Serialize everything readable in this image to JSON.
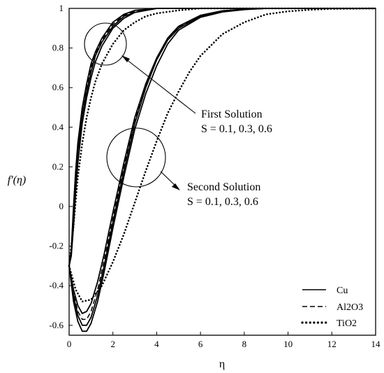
{
  "chart_data": {
    "type": "line",
    "xlabel": "η",
    "ylabel": "f'(η)",
    "xlim": [
      0,
      14
    ],
    "ylim": [
      -0.65,
      1
    ],
    "x_ticks": [
      "0",
      "2",
      "4",
      "6",
      "8",
      "10",
      "12",
      "14"
    ],
    "y_ticks": [
      "-0.6",
      "-0.4",
      "-0.2",
      "0",
      "0.2",
      "0.4",
      "0.6",
      "0.8",
      "1"
    ],
    "grid": false,
    "legend_position": "bottom-right",
    "legend": [
      {
        "label": "Cu",
        "style": "solid"
      },
      {
        "label": "Al2O3",
        "style": "dashed"
      },
      {
        "label": "TiO2",
        "style": "dotted"
      }
    ],
    "annotations": {
      "first_title": "First Solution",
      "first_params": "S = 0.1, 0.3, 0.6",
      "second_title": "Second Solution",
      "second_params": "S = 0.1, 0.3, 0.6"
    },
    "series": [
      {
        "style": "solid",
        "x": [
          0,
          0.1,
          0.2,
          0.3,
          0.4,
          0.6,
          0.8,
          1,
          1.2,
          1.5,
          2,
          2.5,
          3,
          4,
          5,
          14
        ],
        "y": [
          -0.3,
          -0.22,
          0,
          0.18,
          0.32,
          0.5,
          0.62,
          0.72,
          0.78,
          0.85,
          0.93,
          0.97,
          0.99,
          1,
          1,
          1
        ]
      },
      {
        "style": "solid",
        "x": [
          0,
          0.1,
          0.2,
          0.3,
          0.4,
          0.6,
          0.8,
          1,
          1.2,
          1.5,
          2,
          2.5,
          3,
          4,
          5,
          14
        ],
        "y": [
          -0.3,
          -0.24,
          -0.05,
          0.14,
          0.28,
          0.46,
          0.58,
          0.68,
          0.76,
          0.83,
          0.91,
          0.96,
          0.98,
          1,
          1,
          1
        ]
      },
      {
        "style": "solid",
        "x": [
          0,
          0.1,
          0.2,
          0.3,
          0.4,
          0.6,
          0.8,
          1,
          1.2,
          1.5,
          2,
          2.5,
          3,
          4,
          5,
          14
        ],
        "y": [
          -0.3,
          -0.25,
          -0.1,
          0.08,
          0.22,
          0.42,
          0.55,
          0.65,
          0.73,
          0.81,
          0.9,
          0.95,
          0.98,
          1,
          1,
          1
        ]
      },
      {
        "style": "dashed",
        "x": [
          0,
          0.1,
          0.2,
          0.3,
          0.4,
          0.6,
          0.8,
          1,
          1.2,
          1.5,
          2,
          2.5,
          3,
          4,
          5,
          14
        ],
        "y": [
          -0.3,
          -0.23,
          -0.02,
          0.16,
          0.3,
          0.48,
          0.6,
          0.7,
          0.77,
          0.84,
          0.92,
          0.965,
          0.985,
          1,
          1,
          1
        ]
      },
      {
        "style": "dotted",
        "x": [
          0,
          0.2,
          0.4,
          0.6,
          0.8,
          1,
          1.2,
          1.5,
          2,
          2.5,
          3,
          3.5,
          4,
          5,
          6,
          7,
          14
        ],
        "y": [
          -0.3,
          -0.1,
          0.15,
          0.32,
          0.45,
          0.55,
          0.63,
          0.72,
          0.82,
          0.89,
          0.93,
          0.96,
          0.975,
          0.99,
          1,
          1,
          1
        ]
      },
      {
        "style": "solid",
        "x": [
          0,
          0.2,
          0.4,
          0.6,
          0.8,
          1,
          1.3,
          1.6,
          2,
          2.5,
          3,
          3.5,
          4,
          4.5,
          5,
          6,
          7,
          8,
          9,
          14
        ],
        "y": [
          -0.3,
          -0.45,
          -0.55,
          -0.6,
          -0.6,
          -0.56,
          -0.45,
          -0.3,
          -0.08,
          0.18,
          0.42,
          0.6,
          0.74,
          0.84,
          0.9,
          0.96,
          0.985,
          0.995,
          1,
          1
        ]
      },
      {
        "style": "solid",
        "x": [
          0,
          0.2,
          0.4,
          0.6,
          0.8,
          1,
          1.3,
          1.6,
          2,
          2.5,
          3,
          3.5,
          4,
          4.5,
          5,
          6,
          7,
          8,
          9,
          14
        ],
        "y": [
          -0.3,
          -0.42,
          -0.5,
          -0.54,
          -0.53,
          -0.49,
          -0.38,
          -0.24,
          -0.03,
          0.22,
          0.45,
          0.62,
          0.75,
          0.85,
          0.91,
          0.965,
          0.988,
          0.996,
          1,
          1
        ]
      },
      {
        "style": "solid",
        "x": [
          0,
          0.2,
          0.4,
          0.6,
          0.8,
          1,
          1.3,
          1.6,
          2,
          2.5,
          3,
          3.5,
          4,
          4.5,
          5,
          6,
          7,
          8,
          9,
          14
        ],
        "y": [
          -0.3,
          -0.48,
          -0.58,
          -0.63,
          -0.63,
          -0.59,
          -0.48,
          -0.33,
          -0.11,
          0.15,
          0.39,
          0.57,
          0.71,
          0.82,
          0.89,
          0.955,
          0.982,
          0.994,
          1,
          1
        ]
      },
      {
        "style": "dashed",
        "x": [
          0,
          0.2,
          0.4,
          0.6,
          0.8,
          1,
          1.3,
          1.6,
          2,
          2.5,
          3,
          3.5,
          4,
          4.5,
          5,
          6,
          7,
          8,
          9,
          14
        ],
        "y": [
          -0.3,
          -0.44,
          -0.53,
          -0.57,
          -0.57,
          -0.53,
          -0.42,
          -0.27,
          -0.06,
          0.2,
          0.43,
          0.61,
          0.74,
          0.84,
          0.905,
          0.962,
          0.986,
          0.995,
          1,
          1
        ]
      },
      {
        "style": "dotted",
        "x": [
          0,
          0.3,
          0.6,
          1,
          1.5,
          2,
          2.5,
          3,
          3.5,
          4,
          4.5,
          5,
          5.5,
          6,
          7,
          8,
          9,
          10,
          11,
          12,
          14
        ],
        "y": [
          -0.3,
          -0.42,
          -0.48,
          -0.47,
          -0.4,
          -0.28,
          -0.14,
          0.02,
          0.18,
          0.33,
          0.47,
          0.58,
          0.68,
          0.76,
          0.87,
          0.93,
          0.97,
          0.985,
          0.993,
          0.998,
          1
        ]
      }
    ]
  }
}
